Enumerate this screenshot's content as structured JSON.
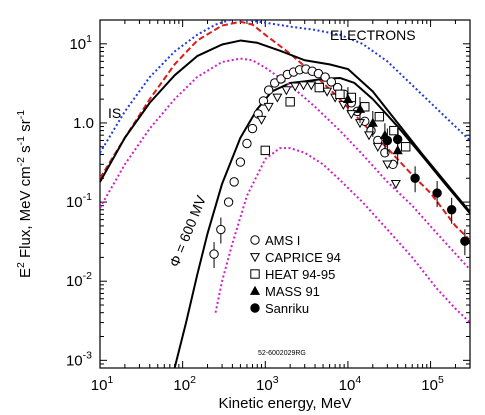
{
  "chart_data": {
    "type": "scatter",
    "xlabel": "Kinetic energy, MeV",
    "ylabel_parts": [
      "E",
      "2",
      " Flux, MeV cm",
      "-2",
      " s",
      "-1",
      " sr",
      "-1"
    ],
    "xscale": "log",
    "yscale": "log",
    "xlim": [
      10,
      300000
    ],
    "ylim": [
      0.0008,
      20
    ],
    "x_ticks": [
      {
        "value": 10,
        "base": "10",
        "exp": "1"
      },
      {
        "value": 100,
        "base": "10",
        "exp": "2"
      },
      {
        "value": 1000,
        "base": "10",
        "exp": "3"
      },
      {
        "value": 10000,
        "base": "10",
        "exp": "4"
      },
      {
        "value": 100000,
        "base": "10",
        "exp": "5"
      }
    ],
    "y_ticks": [
      {
        "value": 0.001,
        "base": "10",
        "exp": "-3"
      },
      {
        "value": 0.01,
        "base": "10",
        "exp": "-2"
      },
      {
        "value": 0.1,
        "base": "10",
        "exp": "-1"
      },
      {
        "value": 1,
        "base": "10",
        "exp": "0",
        "plain": "1.0"
      },
      {
        "value": 10,
        "base": "10",
        "exp": "1"
      }
    ],
    "annotations": {
      "title": "ELECTRONS",
      "is_label": "IS",
      "phi_label": "Φ = 600 MV",
      "figure_id": "52-6002029RG"
    },
    "curves": [
      {
        "name": "blue-dotted",
        "color": "#1f3bdc",
        "dash": "2,2.5",
        "width": 2,
        "points": [
          [
            10,
            0.42
          ],
          [
            20,
            1.4
          ],
          [
            40,
            3.8
          ],
          [
            80,
            8
          ],
          [
            150,
            13
          ],
          [
            250,
            17.5
          ],
          [
            400,
            20.5
          ],
          [
            600,
            20
          ],
          [
            1000,
            18.5
          ],
          [
            2000,
            16.5
          ],
          [
            4000,
            15
          ],
          [
            8000,
            13
          ],
          [
            15000,
            10
          ],
          [
            30000,
            6
          ],
          [
            60000,
            3
          ],
          [
            120000,
            1.5
          ],
          [
            300000,
            0.6
          ]
        ]
      },
      {
        "name": "red-dashed",
        "color": "#e01a1a",
        "dash": "6,3",
        "width": 2,
        "points": [
          [
            10,
            0.2
          ],
          [
            20,
            0.65
          ],
          [
            40,
            2
          ],
          [
            80,
            5.5
          ],
          [
            150,
            11
          ],
          [
            300,
            17
          ],
          [
            500,
            19
          ],
          [
            700,
            17.5
          ],
          [
            1000,
            13
          ],
          [
            2000,
            7.5
          ],
          [
            4000,
            4
          ],
          [
            8000,
            2
          ],
          [
            15000,
            1
          ],
          [
            30000,
            0.48
          ],
          [
            60000,
            0.22
          ],
          [
            100000,
            0.13
          ],
          [
            200000,
            0.05
          ],
          [
            300000,
            0.033
          ]
        ]
      },
      {
        "name": "black-solid-is",
        "color": "#000000",
        "dash": "",
        "width": 2,
        "points": [
          [
            10,
            0.18
          ],
          [
            20,
            0.65
          ],
          [
            40,
            1.8
          ],
          [
            80,
            4
          ],
          [
            150,
            7
          ],
          [
            300,
            9.8
          ],
          [
            500,
            11
          ],
          [
            800,
            10.3
          ],
          [
            1500,
            8.2
          ],
          [
            3000,
            6.2
          ],
          [
            6000,
            5.5
          ],
          [
            10000,
            4.8
          ],
          [
            20000,
            2.5
          ],
          [
            40000,
            1
          ],
          [
            80000,
            0.4
          ],
          [
            150000,
            0.18
          ],
          [
            300000,
            0.075
          ]
        ]
      },
      {
        "name": "black-solid-modulated",
        "color": "#000000",
        "dash": "",
        "width": 2,
        "points": [
          [
            80,
            0.0008
          ],
          [
            110,
            0.003
          ],
          [
            150,
            0.012
          ],
          [
            200,
            0.04
          ],
          [
            300,
            0.17
          ],
          [
            500,
            0.65
          ],
          [
            800,
            1.5
          ],
          [
            1200,
            2.5
          ],
          [
            2000,
            3.2
          ],
          [
            3000,
            3.35
          ],
          [
            5000,
            3.6
          ],
          [
            8000,
            3.7
          ],
          [
            12000,
            3.2
          ],
          [
            20000,
            2
          ],
          [
            40000,
            0.9
          ],
          [
            80000,
            0.38
          ],
          [
            150000,
            0.17
          ],
          [
            300000,
            0.072
          ]
        ]
      },
      {
        "name": "magenta-dotted-upper",
        "color": "#d21ec8",
        "dash": "2,2.5",
        "width": 2,
        "points": [
          [
            10,
            0.085
          ],
          [
            20,
            0.3
          ],
          [
            40,
            0.85
          ],
          [
            80,
            2
          ],
          [
            150,
            3.8
          ],
          [
            300,
            5.9
          ],
          [
            500,
            6.5
          ],
          [
            700,
            6.2
          ],
          [
            1000,
            5
          ],
          [
            2000,
            3
          ],
          [
            4000,
            1.6
          ],
          [
            8000,
            0.8
          ],
          [
            15000,
            0.4
          ],
          [
            30000,
            0.18
          ],
          [
            60000,
            0.09
          ],
          [
            120000,
            0.04
          ],
          [
            300000,
            0.014
          ]
        ]
      },
      {
        "name": "magenta-dotted-lower",
        "color": "#d21ec8",
        "dash": "2,2.5",
        "width": 2,
        "points": [
          [
            250,
            0.004
          ],
          [
            300,
            0.01
          ],
          [
            400,
            0.03
          ],
          [
            600,
            0.12
          ],
          [
            1000,
            0.35
          ],
          [
            1500,
            0.48
          ],
          [
            2000,
            0.48
          ],
          [
            3000,
            0.42
          ],
          [
            5000,
            0.3
          ],
          [
            8000,
            0.19
          ],
          [
            15000,
            0.1
          ],
          [
            30000,
            0.045
          ],
          [
            60000,
            0.02
          ],
          [
            120000,
            0.008
          ],
          [
            200000,
            0.0045
          ],
          [
            300000,
            0.003
          ]
        ]
      }
    ],
    "series": [
      {
        "name": "AMS I",
        "marker": "circle-open",
        "points": [
          [
            240,
            0.022
          ],
          [
            290,
            0.045
          ],
          [
            360,
            0.1
          ],
          [
            420,
            0.18
          ],
          [
            500,
            0.32
          ],
          [
            600,
            0.55
          ],
          [
            700,
            0.85
          ],
          [
            820,
            1.3
          ],
          [
            950,
            1.9
          ],
          [
            1100,
            2.6
          ],
          [
            1300,
            3.2
          ],
          [
            1550,
            3.6
          ],
          [
            1850,
            4.1
          ],
          [
            2200,
            4.4
          ],
          [
            2600,
            4.7
          ],
          [
            3100,
            4.8
          ],
          [
            3700,
            4.5
          ],
          [
            4400,
            4.2
          ],
          [
            5300,
            3.8
          ],
          [
            6300,
            3.3
          ],
          [
            7500,
            2.8
          ],
          [
            9000,
            2.3
          ],
          [
            11000,
            1.8
          ],
          [
            13000,
            1.4
          ],
          [
            16000,
            1.05
          ],
          [
            19000,
            0.8
          ],
          [
            23000,
            0.6
          ],
          [
            28000,
            0.42
          ],
          [
            35000,
            0.3
          ]
        ]
      },
      {
        "name": "CAPRICE 94",
        "marker": "triangle-down-open",
        "points": [
          [
            900,
            1.1
          ],
          [
            1100,
            1.6
          ],
          [
            1400,
            2.1
          ],
          [
            1800,
            2.6
          ],
          [
            2300,
            2.9
          ],
          [
            2900,
            3.0
          ],
          [
            3600,
            3.0
          ],
          [
            4500,
            2.8
          ],
          [
            5600,
            2.5
          ],
          [
            7000,
            2.1
          ],
          [
            8800,
            1.7
          ],
          [
            11000,
            1.3
          ],
          [
            14000,
            1.0
          ],
          [
            18000,
            0.7
          ],
          [
            23000,
            0.5
          ],
          [
            30000,
            0.3
          ],
          [
            38000,
            0.17
          ]
        ]
      },
      {
        "name": "HEAT 94-95",
        "marker": "square-open",
        "points": [
          [
            1000,
            0.45
          ],
          [
            2000,
            1.85
          ],
          [
            4500,
            2.8
          ],
          [
            8000,
            2.3
          ],
          [
            11000,
            2.1
          ],
          [
            16000,
            1.6
          ],
          [
            24000,
            1.2
          ],
          [
            36000,
            0.8
          ],
          [
            50000,
            0.5
          ]
        ]
      },
      {
        "name": "MASS 91",
        "marker": "triangle-up-filled",
        "points": [
          [
            10000,
            2.0
          ],
          [
            14000,
            1.5
          ],
          [
            20000,
            1.0
          ],
          [
            28000,
            0.7
          ],
          [
            40000,
            0.45
          ]
        ]
      },
      {
        "name": "Sanriku",
        "marker": "circle-filled",
        "points": [
          [
            30000,
            0.6
          ],
          [
            40000,
            0.62
          ],
          [
            65000,
            0.2
          ],
          [
            120000,
            0.13
          ],
          [
            180000,
            0.08
          ],
          [
            260000,
            0.032
          ]
        ]
      }
    ],
    "legend": [
      {
        "label": "AMS I",
        "marker": "circle-open"
      },
      {
        "label": "CAPRICE 94",
        "marker": "triangle-down-open"
      },
      {
        "label": "HEAT 94-95",
        "marker": "square-open"
      },
      {
        "label": "MASS 91",
        "marker": "triangle-up-filled"
      },
      {
        "label": "Sanriku",
        "marker": "circle-filled"
      }
    ]
  }
}
